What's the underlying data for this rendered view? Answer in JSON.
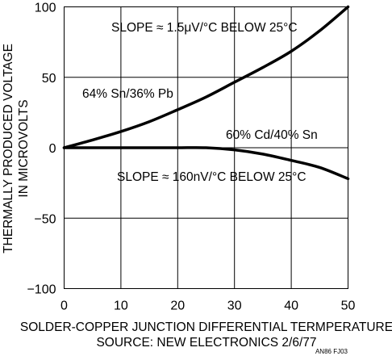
{
  "chart_data": {
    "type": "line",
    "title": "",
    "xlabel": "SOLDER-COPPER JUNCTION DIFFERENTIAL TERMPERATURE",
    "ylabel_line1": "THERMALLY PRODUCED VOLTAGE",
    "ylabel_line2": "IN MICROVOLTS",
    "source": "SOURCE: NEW ELECTRONICS 2/6/77",
    "figure_id": "AN86 FJ03",
    "xlim": [
      0,
      50
    ],
    "ylim": [
      -100,
      100
    ],
    "x_ticks": [
      0,
      10,
      20,
      30,
      40,
      50
    ],
    "x_tick_labels": [
      "0",
      "10",
      "20",
      "30",
      "40",
      "50"
    ],
    "y_ticks": [
      100,
      50,
      0,
      -50,
      -100
    ],
    "y_tick_labels": [
      "100",
      "50",
      "0",
      "−50",
      "−100"
    ],
    "grid": true,
    "x": [
      0,
      5,
      10,
      15,
      20,
      25,
      30,
      35,
      40,
      45,
      50
    ],
    "series": [
      {
        "values": [
          0,
          5.5,
          11.5,
          18.5,
          27,
          36,
          46.5,
          57,
          68.5,
          83,
          100
        ]
      },
      {
        "values": [
          0,
          0,
          0,
          0,
          0,
          0,
          -1.5,
          -4.5,
          -9,
          -14,
          -22
        ]
      }
    ],
    "annotations": [
      "SLOPE ≈ 1.5μV/°C BELOW 25°C",
      "64% Sn/36% Pb",
      "60% Cd/40% Sn",
      "SLOPE ≈ 160nV/°C BELOW 25°C"
    ]
  }
}
